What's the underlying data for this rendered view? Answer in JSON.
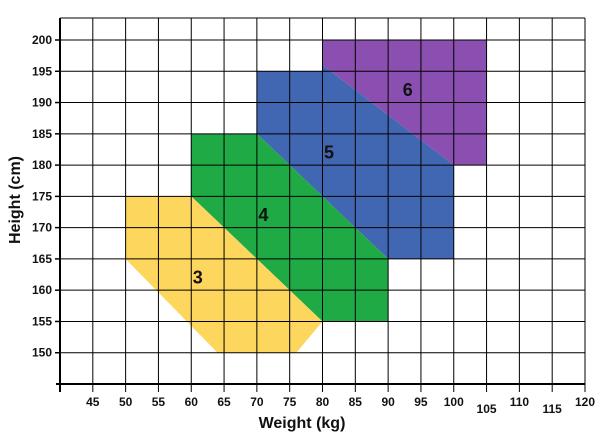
{
  "chart_data": {
    "type": "area",
    "xlabel": "Weight (kg)",
    "ylabel": "Height (cm)",
    "xlim": [
      40,
      120
    ],
    "ylim": [
      145,
      200
    ],
    "grid": true,
    "x_ticks": [
      {
        "value": 45,
        "label": "45"
      },
      {
        "value": 50,
        "label": "50"
      },
      {
        "value": 55,
        "label": "55"
      },
      {
        "value": 60,
        "label": "60"
      },
      {
        "value": 65,
        "label": "65"
      },
      {
        "value": 70,
        "label": "70"
      },
      {
        "value": 75,
        "label": "75"
      },
      {
        "value": 80,
        "label": "80"
      },
      {
        "value": 85,
        "label": "85"
      },
      {
        "value": 90,
        "label": "90"
      },
      {
        "value": 95,
        "label": "95"
      },
      {
        "value": 100,
        "label": "100"
      },
      {
        "value": 105,
        "label": "105"
      },
      {
        "value": 110,
        "label": "110"
      },
      {
        "value": 115,
        "label": "115"
      },
      {
        "value": 120,
        "label": "120"
      }
    ],
    "y_ticks": [
      {
        "value": 150,
        "label": "150"
      },
      {
        "value": 155,
        "label": "155"
      },
      {
        "value": 160,
        "label": "160"
      },
      {
        "value": 165,
        "label": "165"
      },
      {
        "value": 170,
        "label": "170"
      },
      {
        "value": 175,
        "label": "175"
      },
      {
        "value": 180,
        "label": "180"
      },
      {
        "value": 185,
        "label": "185"
      },
      {
        "value": 190,
        "label": "190"
      },
      {
        "value": 195,
        "label": "195"
      },
      {
        "value": 200,
        "label": "200"
      }
    ],
    "regions": [
      {
        "label": "6",
        "color": "#8a4fb0",
        "label_at": {
          "x": 93,
          "y": 192
        },
        "polygon": [
          [
            80,
            200
          ],
          [
            105,
            200
          ],
          [
            105,
            180
          ],
          [
            100,
            180
          ],
          [
            80,
            196
          ]
        ]
      },
      {
        "label": "5",
        "color": "#4267b2",
        "label_at": {
          "x": 81,
          "y": 182
        },
        "polygon": [
          [
            70,
            195
          ],
          [
            80,
            195
          ],
          [
            80,
            196
          ],
          [
            100,
            180
          ],
          [
            100,
            165
          ],
          [
            90,
            165
          ],
          [
            70,
            185
          ]
        ]
      },
      {
        "label": "4",
        "color": "#1faa45",
        "label_at": {
          "x": 71,
          "y": 172
        },
        "polygon": [
          [
            60,
            185
          ],
          [
            70,
            185
          ],
          [
            90,
            165
          ],
          [
            90,
            155
          ],
          [
            80,
            155
          ],
          [
            60,
            175
          ]
        ]
      },
      {
        "label": "3",
        "color": "#fdd65e",
        "label_at": {
          "x": 61,
          "y": 162
        },
        "polygon": [
          [
            50,
            175
          ],
          [
            60,
            175
          ],
          [
            80,
            155
          ],
          [
            76,
            150
          ],
          [
            64,
            150
          ],
          [
            50,
            165
          ]
        ]
      }
    ]
  }
}
